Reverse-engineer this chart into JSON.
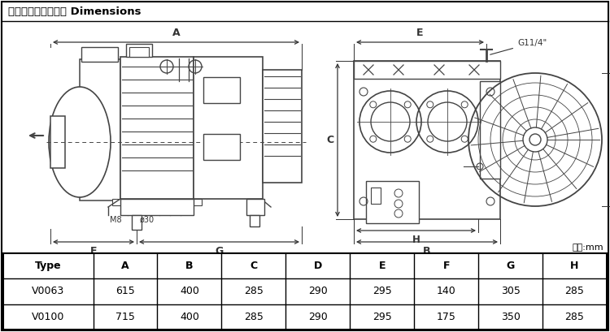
{
  "title": "外型尺寸及安裝尺寸 Dimensions",
  "unit_label": "單位:mm",
  "table_headers": [
    "Type",
    "A",
    "B",
    "C",
    "D",
    "E",
    "F",
    "G",
    "H"
  ],
  "table_rows": [
    [
      "V0063",
      "615",
      "400",
      "285",
      "290",
      "295",
      "140",
      "305",
      "285"
    ],
    [
      "V0100",
      "715",
      "400",
      "285",
      "290",
      "295",
      "175",
      "350",
      "285"
    ]
  ],
  "bg_color": "#ffffff",
  "border_color": "#000000",
  "line_color": "#444444",
  "dim_color": "#333333",
  "port_label": "G11/4\"",
  "m8_label": "M8",
  "phi_label": "ø30"
}
